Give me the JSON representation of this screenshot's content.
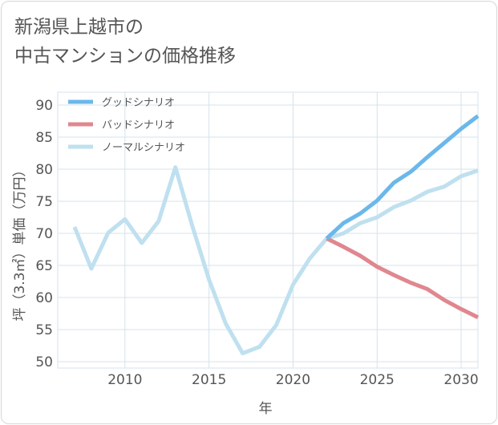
{
  "title_line1": "新潟県上越市の",
  "title_line2": "中古マンションの価格推移",
  "chart_data": {
    "type": "line",
    "xlabel": "年",
    "ylabel": "坪（3.3㎡）単価（万円）",
    "xlim": [
      2006,
      2031
    ],
    "ylim": [
      49,
      92
    ],
    "x_ticks": [
      2010,
      2015,
      2020,
      2025,
      2030
    ],
    "y_ticks": [
      50,
      55,
      60,
      65,
      70,
      75,
      80,
      85,
      90
    ],
    "grid": true,
    "legend_position": "top-left",
    "series": [
      {
        "name": "グッドシナリオ",
        "color": "#6bb8ea",
        "x": [
          2022,
          2023,
          2024,
          2025,
          2026,
          2027,
          2028,
          2029,
          2030,
          2031
        ],
        "y": [
          69.2,
          71.6,
          73.1,
          75.1,
          77.9,
          79.6,
          81.9,
          84.1,
          86.3,
          88.3
        ]
      },
      {
        "name": "バッドシナリオ",
        "color": "#e0878f",
        "x": [
          2022,
          2023,
          2024,
          2025,
          2026,
          2027,
          2028,
          2029,
          2030,
          2031
        ],
        "y": [
          69.2,
          67.9,
          66.5,
          64.8,
          63.5,
          62.3,
          61.3,
          59.6,
          58.2,
          56.9
        ]
      },
      {
        "name": "ノーマルシナリオ",
        "color": "#bfe0ef",
        "x": [
          2007,
          2008,
          2009,
          2010,
          2011,
          2012,
          2013,
          2014,
          2015,
          2016,
          2017,
          2018,
          2019,
          2020,
          2021,
          2022,
          2023,
          2024,
          2025,
          2026,
          2027,
          2028,
          2029,
          2030,
          2031
        ],
        "y": [
          71.0,
          64.5,
          70.1,
          72.2,
          68.5,
          71.9,
          80.3,
          71.2,
          62.8,
          55.9,
          51.3,
          52.3,
          55.7,
          62.0,
          66.1,
          69.2,
          70.0,
          71.6,
          72.5,
          74.1,
          75.1,
          76.5,
          77.3,
          78.9,
          79.8
        ]
      }
    ]
  }
}
